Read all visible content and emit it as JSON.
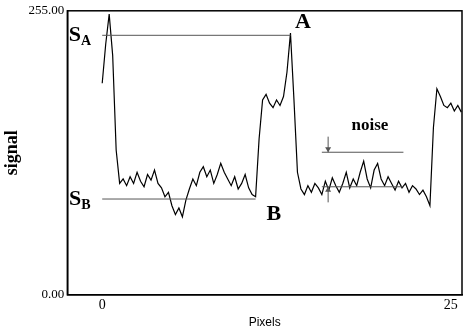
{
  "chart_data": {
    "type": "line",
    "x_label": "Pixels",
    "y_label": "signal",
    "color": "#000000",
    "grid": false,
    "xlim": [
      -2.5,
      25.8
    ],
    "xticks": [
      0,
      25
    ],
    "ylim": [
      0,
      255
    ],
    "yticks": [
      {
        "value": 0,
        "label": "0.00"
      },
      {
        "value": 255,
        "label": "255.00"
      }
    ],
    "x": [
      0,
      0.25,
      0.5,
      0.75,
      1,
      1.25,
      1.5,
      1.75,
      2,
      2.25,
      2.5,
      2.75,
      3,
      3.25,
      3.5,
      3.75,
      4,
      4.25,
      4.5,
      4.75,
      5,
      5.25,
      5.5,
      5.75,
      6,
      6.25,
      6.5,
      6.75,
      7,
      7.25,
      7.5,
      7.75,
      8,
      8.25,
      8.5,
      8.75,
      9,
      9.25,
      9.5,
      9.75,
      10,
      10.25,
      10.5,
      10.75,
      11,
      11.25,
      11.5,
      11.75,
      12,
      12.25,
      12.5,
      12.75,
      13,
      13.25,
      13.5,
      13.75,
      14,
      14.25,
      14.5,
      14.75,
      15,
      15.25,
      15.5,
      15.75,
      16,
      16.25,
      16.5,
      16.75,
      17,
      17.25,
      17.5,
      17.75,
      18,
      18.25,
      18.5,
      18.75,
      19,
      19.25,
      19.5,
      19.75,
      20,
      20.25,
      20.5,
      20.75,
      21,
      21.25,
      21.5,
      21.75,
      22,
      22.25,
      22.5,
      22.75,
      23,
      23.25,
      23.5,
      23.75,
      24,
      24.25,
      24.5,
      24.75,
      25,
      25.25,
      25.5,
      25.75
    ],
    "values": [
      190,
      225,
      252,
      215,
      130,
      100,
      104,
      98,
      106,
      100,
      110,
      102,
      97,
      108,
      103,
      112,
      100,
      96,
      88,
      92,
      80,
      72,
      78,
      70,
      85,
      95,
      104,
      98,
      110,
      115,
      106,
      112,
      100,
      108,
      118,
      110,
      104,
      98,
      106,
      95,
      100,
      108,
      96,
      90,
      88,
      140,
      175,
      180,
      172,
      168,
      175,
      170,
      178,
      200,
      235,
      175,
      110,
      95,
      90,
      98,
      92,
      100,
      96,
      90,
      102,
      94,
      105,
      98,
      92,
      100,
      110,
      96,
      104,
      98,
      110,
      120,
      104,
      96,
      112,
      118,
      104,
      98,
      106,
      100,
      94,
      102,
      96,
      100,
      92,
      98,
      95,
      90,
      94,
      88,
      80,
      150,
      185,
      178,
      170,
      168,
      172,
      165,
      170,
      164
    ],
    "reference_lines": [
      {
        "y": 233,
        "x": [
          0,
          13.5
        ]
      },
      {
        "y": 86,
        "x": [
          0,
          11
        ]
      },
      {
        "y": 128,
        "x": [
          15.75,
          21.6
        ]
      },
      {
        "y": 97,
        "x": [
          15.75,
          21.6
        ]
      }
    ],
    "arrows": [
      {
        "x": 16.2,
        "from": 142,
        "to": 128
      },
      {
        "x": 16.2,
        "from": 83,
        "to": 97
      }
    ],
    "annotations": [
      {
        "text": "S",
        "subscript": "A",
        "x": -1.6,
        "y": 233
      },
      {
        "text": "S",
        "subscript": "B",
        "x": -1.6,
        "y": 86
      },
      {
        "text": "A",
        "x": 14.4,
        "y": 245
      },
      {
        "text": "B",
        "x": 12.3,
        "y": 72
      },
      {
        "text": "noise",
        "x": 19.2,
        "y": 152
      }
    ]
  }
}
